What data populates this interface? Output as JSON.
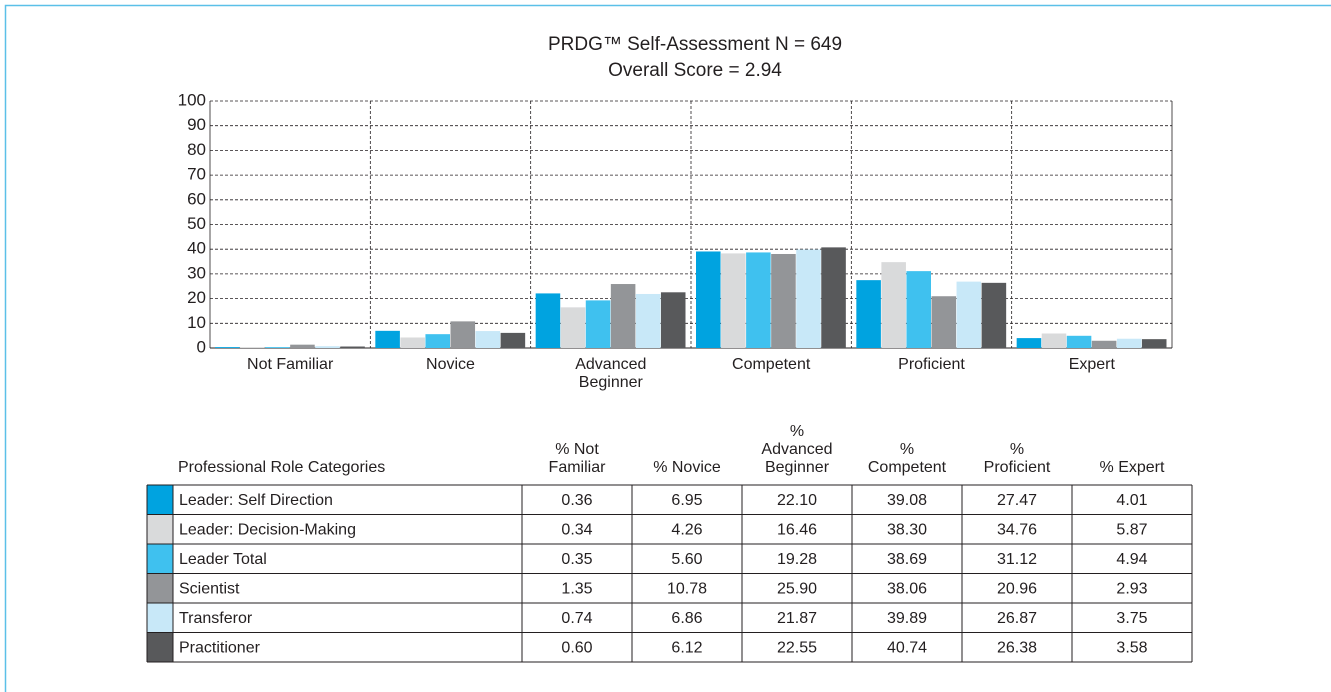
{
  "chart_data": {
    "type": "bar",
    "title": "PRDG™ Self-Assessment N = 649",
    "subtitle": "Overall Score = 2.94",
    "categories": [
      "Not Familiar",
      "Novice",
      "Advanced Beginner",
      "Competent",
      "Proficient",
      "Expert"
    ],
    "ylim": [
      0,
      100
    ],
    "yticks": [
      0,
      10,
      20,
      30,
      40,
      50,
      60,
      70,
      80,
      90,
      100
    ],
    "grid": true,
    "series": [
      {
        "name": "Leader: Self Direction",
        "color": "#00a3e0",
        "values": [
          0.36,
          6.95,
          22.1,
          39.08,
          27.47,
          4.01
        ],
        "value_labels": [
          "0.36",
          "6.95",
          "22.10",
          "39.08",
          "27.47",
          "4.01"
        ]
      },
      {
        "name": "Leader: Decision-Making",
        "color": "#d9dadb",
        "values": [
          0.34,
          4.26,
          16.46,
          38.3,
          34.76,
          5.87
        ],
        "value_labels": [
          "0.34",
          "4.26",
          "16.46",
          "38.30",
          "34.76",
          "5.87"
        ]
      },
      {
        "name": "Leader Total",
        "color": "#3fc1ef",
        "values": [
          0.35,
          5.6,
          19.28,
          38.69,
          31.12,
          4.94
        ],
        "value_labels": [
          "0.35",
          "5.60",
          "19.28",
          "38.69",
          "31.12",
          "4.94"
        ]
      },
      {
        "name": "Scientist",
        "color": "#939598",
        "values": [
          1.35,
          10.78,
          25.9,
          38.06,
          20.96,
          2.93
        ],
        "value_labels": [
          "1.35",
          "10.78",
          "25.90",
          "38.06",
          "20.96",
          "2.93"
        ]
      },
      {
        "name": "Transferor",
        "color": "#c8e8f8",
        "values": [
          0.74,
          6.86,
          21.87,
          39.89,
          26.87,
          3.75
        ],
        "value_labels": [
          "0.74",
          "6.86",
          "21.87",
          "39.89",
          "26.87",
          "3.75"
        ]
      },
      {
        "name": "Practitioner",
        "color": "#58595b",
        "values": [
          0.6,
          6.12,
          22.55,
          40.74,
          26.38,
          3.58
        ],
        "value_labels": [
          "0.60",
          "6.12",
          "22.55",
          "40.74",
          "26.38",
          "3.58"
        ]
      }
    ]
  },
  "table": {
    "header": "Professional Role Categories",
    "columns": [
      [
        "% Not",
        "Familiar"
      ],
      [
        "% Novice"
      ],
      [
        "%",
        "Advanced",
        "Beginner"
      ],
      [
        "%",
        "Competent"
      ],
      [
        "%",
        "Proficient"
      ],
      [
        "% Expert"
      ]
    ]
  }
}
